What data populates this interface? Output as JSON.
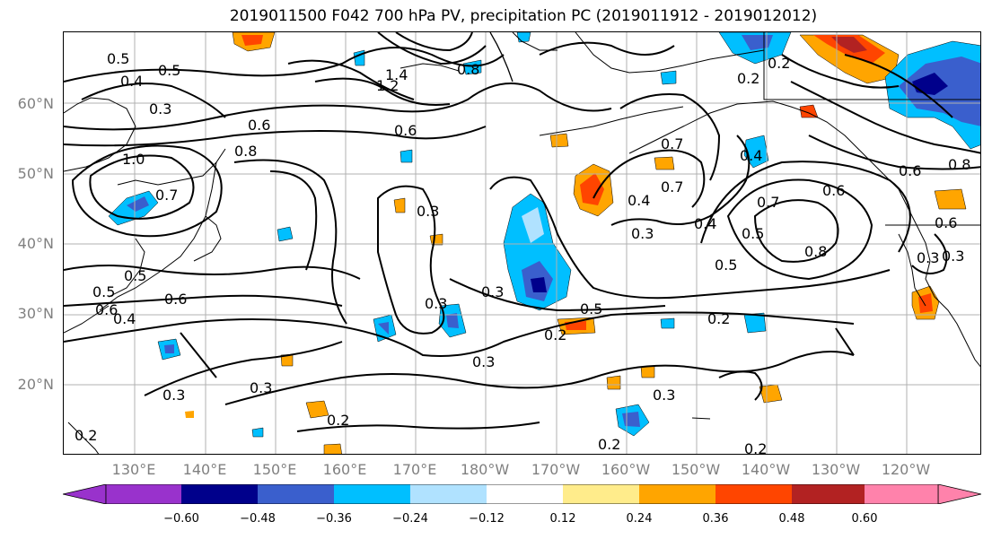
{
  "title": "2019011500 F042 700 hPa PV, precipitation PC (2019011912 - 2019012012)",
  "latitude_labels": [
    "60°N",
    "50°N",
    "40°N",
    "30°N",
    "20°N"
  ],
  "longitude_labels": [
    "130°E",
    "140°E",
    "150°E",
    "160°E",
    "170°E",
    "180°W",
    "170°W",
    "160°W",
    "150°W",
    "140°W",
    "130°W",
    "120°W"
  ],
  "contour_labels": [
    "0.5",
    "0.5",
    "0.4",
    "0.3",
    "1.4",
    "1.2",
    "0.8",
    "0.6",
    "0.6",
    "0.8",
    "1.0",
    "0.7",
    "0.5",
    "0.4",
    "0.3",
    "0.3",
    "0.3",
    "0.7",
    "0.7",
    "0.4",
    "0.3",
    "0.4",
    "0.6",
    "0.7",
    "0.8",
    "0.5",
    "0.6",
    "0.8",
    "0.6",
    "0.3",
    "0.3",
    "0.5",
    "0.4",
    "0.6",
    "0.5",
    "0.6",
    "0.3",
    "0.3",
    "0.5",
    "0.2",
    "0.2",
    "0.3",
    "0.2",
    "0.2",
    "0.3",
    "0.2",
    "0.2",
    "0.2",
    "0.2"
  ],
  "colorbar": {
    "ticks": [
      "−0.60",
      "−0.48",
      "−0.36",
      "−0.24",
      "−0.12",
      "0.12",
      "0.24",
      "0.36",
      "0.48",
      "0.60"
    ],
    "colors": [
      "#9932cc",
      "#00008b",
      "#3a5fcd",
      "#00bfff",
      "#b0e2ff",
      "#ffffff",
      "#ffec8b",
      "#ffa500",
      "#ff4500",
      "#b22222",
      "#ff82ab"
    ]
  }
}
